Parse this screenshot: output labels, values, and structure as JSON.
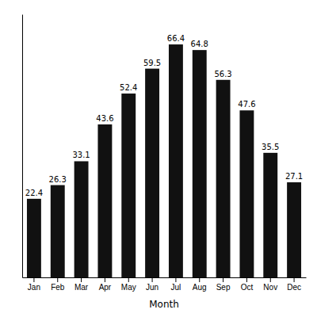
{
  "chart_data": {
    "type": "bar",
    "categories": [
      "Jan",
      "Feb",
      "Mar",
      "Apr",
      "May",
      "Jun",
      "Jul",
      "Aug",
      "Sep",
      "Oct",
      "Nov",
      "Dec"
    ],
    "values": [
      22.4,
      26.3,
      33.1,
      43.6,
      52.4,
      59.5,
      66.4,
      64.8,
      56.3,
      47.6,
      35.5,
      27.1
    ],
    "color": "#111111",
    "xlabel": "Month",
    "ylim": [
      0,
      75
    ],
    "grid": false,
    "data_labels": true,
    "tick_labels": "x"
  }
}
